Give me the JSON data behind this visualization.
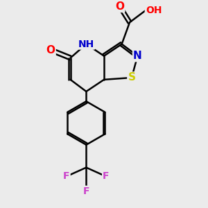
{
  "background_color": "#ebebeb",
  "bond_color": "#000000",
  "atom_colors": {
    "O": "#ff0000",
    "N": "#0000cc",
    "S": "#cccc00",
    "F": "#cc44cc",
    "H": "#555555",
    "C": "#000000"
  },
  "bond_width": 1.8,
  "figsize": [
    3.0,
    3.0
  ],
  "dpi": 100
}
